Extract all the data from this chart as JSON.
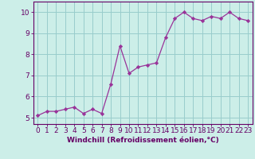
{
  "x": [
    0,
    1,
    2,
    3,
    4,
    5,
    6,
    7,
    8,
    9,
    10,
    11,
    12,
    13,
    14,
    15,
    16,
    17,
    18,
    19,
    20,
    21,
    22,
    23
  ],
  "y": [
    5.1,
    5.3,
    5.3,
    5.4,
    5.5,
    5.2,
    5.4,
    5.2,
    6.6,
    8.4,
    7.1,
    7.4,
    7.5,
    7.6,
    8.8,
    9.7,
    10.0,
    9.7,
    9.6,
    9.8,
    9.7,
    10.0,
    9.7,
    9.6
  ],
  "line_color": "#993399",
  "marker": "D",
  "marker_size": 2.2,
  "bg_color": "#cceee8",
  "grid_color": "#99cccc",
  "xlabel": "Windchill (Refroidissement éolien,°C)",
  "ylim": [
    4.7,
    10.5
  ],
  "xlim": [
    -0.5,
    23.5
  ],
  "yticks": [
    5,
    6,
    7,
    8,
    9,
    10
  ],
  "xticks": [
    0,
    1,
    2,
    3,
    4,
    5,
    6,
    7,
    8,
    9,
    10,
    11,
    12,
    13,
    14,
    15,
    16,
    17,
    18,
    19,
    20,
    21,
    22,
    23
  ],
  "xlabel_color": "#660066",
  "tick_color": "#660066",
  "axis_color": "#660066",
  "tick_font_size": 6.5,
  "xlabel_font_size": 6.5
}
